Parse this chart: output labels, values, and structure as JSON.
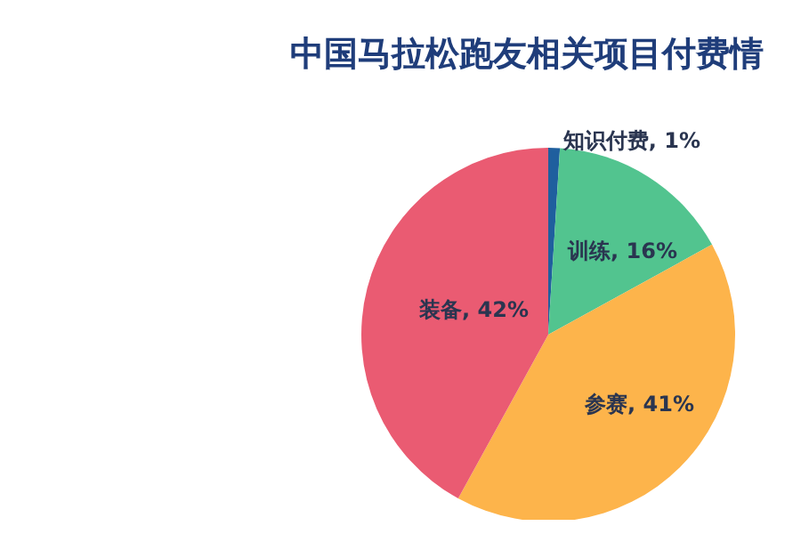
{
  "chart_data": {
    "type": "pie",
    "title": "中国马拉松跑友相关项目付费情",
    "categories": [
      "知识付费",
      "训练",
      "参赛",
      "装备"
    ],
    "values": [
      1,
      16,
      41,
      42
    ],
    "colors": [
      "#1f5f9e",
      "#52c48f",
      "#fdb44b",
      "#ea5b72"
    ],
    "value_labels": [
      "1%",
      "16%",
      "41%",
      "42%"
    ],
    "legend": false
  }
}
